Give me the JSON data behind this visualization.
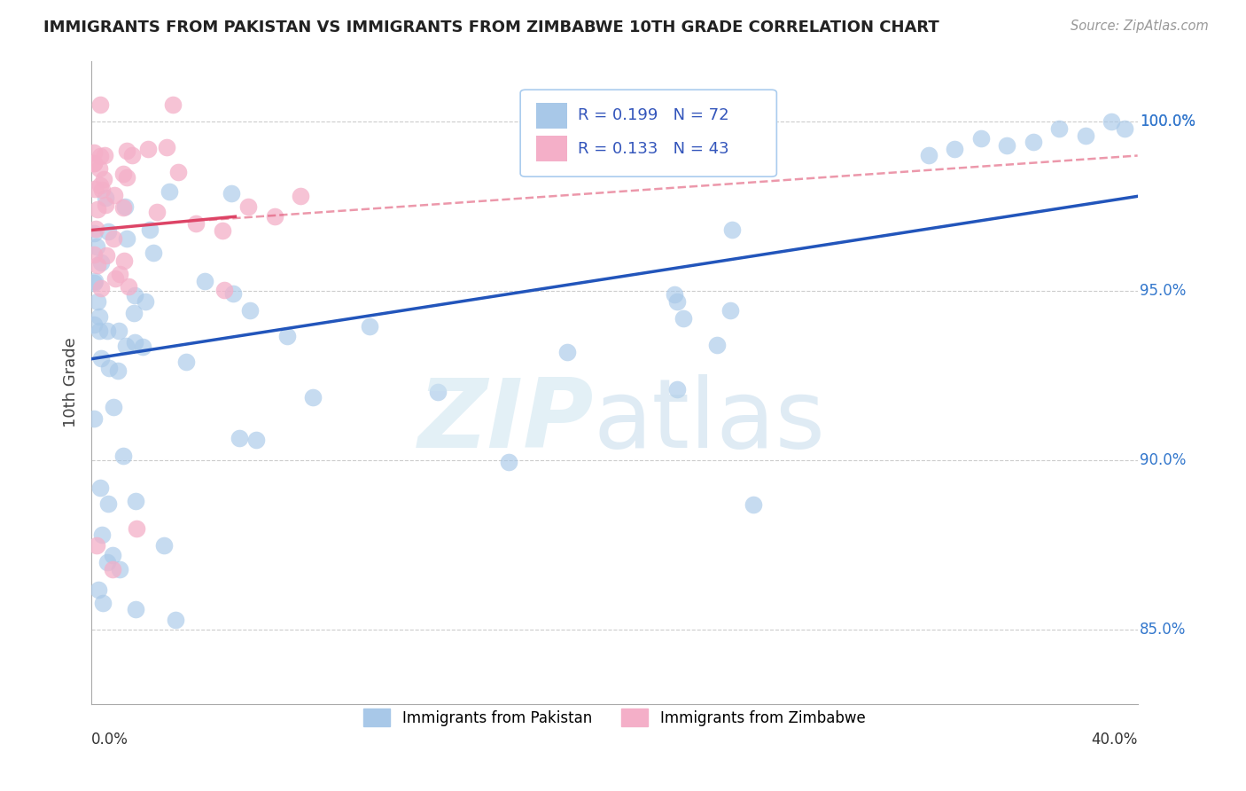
{
  "title": "IMMIGRANTS FROM PAKISTAN VS IMMIGRANTS FROM ZIMBABWE 10TH GRADE CORRELATION CHART",
  "source": "Source: ZipAtlas.com",
  "ylabel": "10th Grade",
  "ylabel_ticks": [
    "85.0%",
    "90.0%",
    "95.0%",
    "100.0%"
  ],
  "ylabel_values": [
    0.85,
    0.9,
    0.95,
    1.0
  ],
  "xlim": [
    0.0,
    0.4
  ],
  "ylim": [
    0.828,
    1.018
  ],
  "pakistan_R": 0.199,
  "pakistan_N": 72,
  "zimbabwe_R": 0.133,
  "zimbabwe_N": 43,
  "pakistan_color": "#a8c8e8",
  "zimbabwe_color": "#f4afc8",
  "pakistan_line_color": "#2255bb",
  "zimbabwe_line_color": "#dd4466",
  "pakistan_trend": [
    0.0,
    0.4,
    0.93,
    0.978
  ],
  "zimbabwe_trend_solid": [
    0.0,
    0.055,
    0.968,
    0.972
  ],
  "zimbabwe_trend_dashed": [
    0.045,
    0.4,
    0.971,
    0.99
  ]
}
